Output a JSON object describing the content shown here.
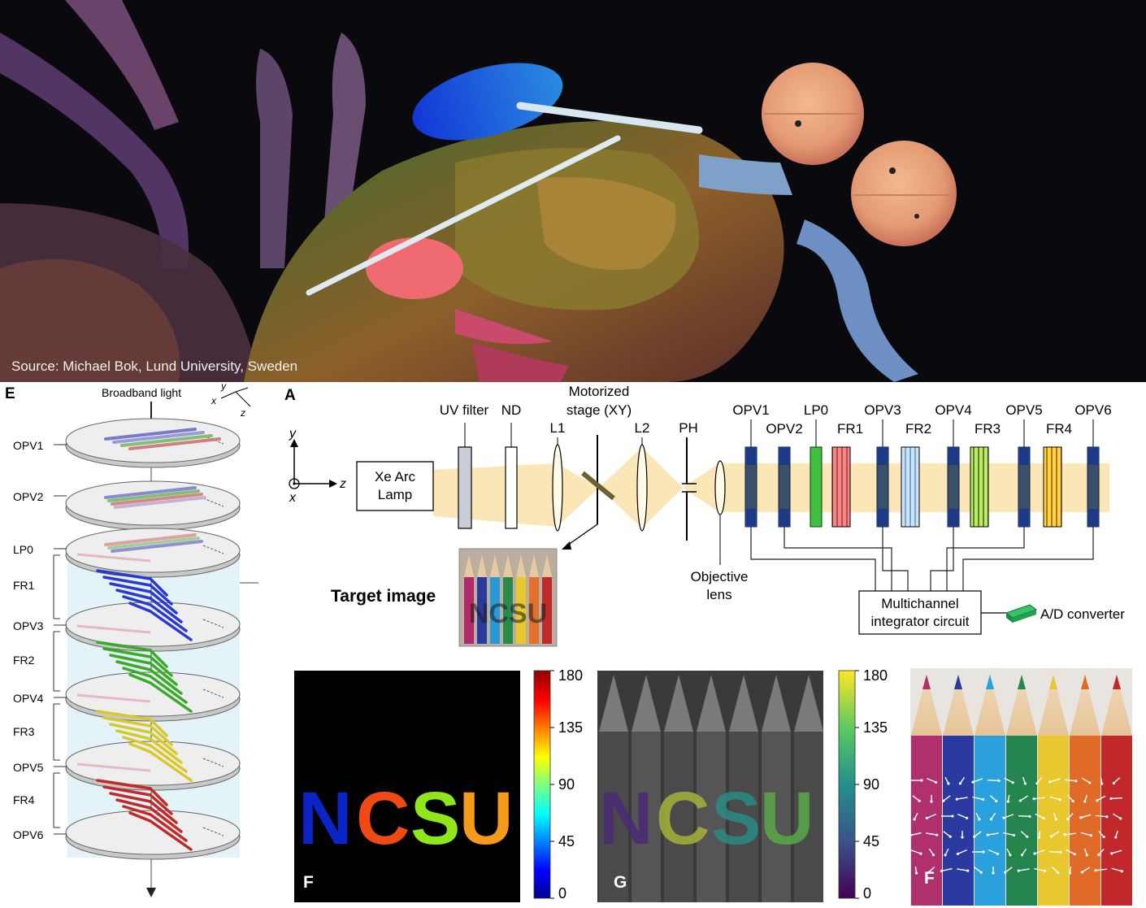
{
  "photo": {
    "credit": "Source: Michael Bok, Lund University, Sweden"
  },
  "panel_e": {
    "letter": "E",
    "light_label": "Broadband light",
    "axes": {
      "y": "y",
      "x": "x",
      "z": "z"
    },
    "layers": [
      "OPV1",
      "OPV2",
      "LP0",
      "FR1",
      "OPV3",
      "FR2",
      "OPV4",
      "FR3",
      "OPV5",
      "FR4",
      "OPV6"
    ]
  },
  "panel_a": {
    "letter": "A",
    "axes": {
      "y": "y",
      "x": "x",
      "z": "z"
    },
    "lamp": [
      "Xe Arc",
      "Lamp"
    ],
    "uv_filter": "UV filter",
    "nd": "ND",
    "stage": [
      "Motorized",
      "stage (XY)"
    ],
    "l1": "L1",
    "l2": "L2",
    "ph": "PH",
    "objective": [
      "Objective",
      "lens"
    ],
    "detectors_top": [
      "OPV1",
      "LP0",
      "OPV3",
      "OPV4",
      "OPV5",
      "OPV6"
    ],
    "detectors_bottom": [
      "OPV2",
      "FR1",
      "FR2",
      "FR3",
      "FR4"
    ],
    "target_label": "Target image",
    "integrator": [
      "Multichannel",
      "integrator circuit"
    ],
    "adc": "A/D converter",
    "colors": {
      "beam": "#fbe6b8",
      "opv": "#1f3f7a",
      "accent": "#2aa84a"
    }
  },
  "panel_f1": {
    "letter": "F",
    "text": "NCSU",
    "colorbar_ticks": [
      "180",
      "135",
      "90",
      "45",
      "0"
    ]
  },
  "panel_g": {
    "letter": "G",
    "text": "NCSU",
    "colorbar_ticks": [
      "180",
      "135",
      "90",
      "45",
      "0"
    ]
  },
  "panel_f2": {
    "letter": "F"
  }
}
